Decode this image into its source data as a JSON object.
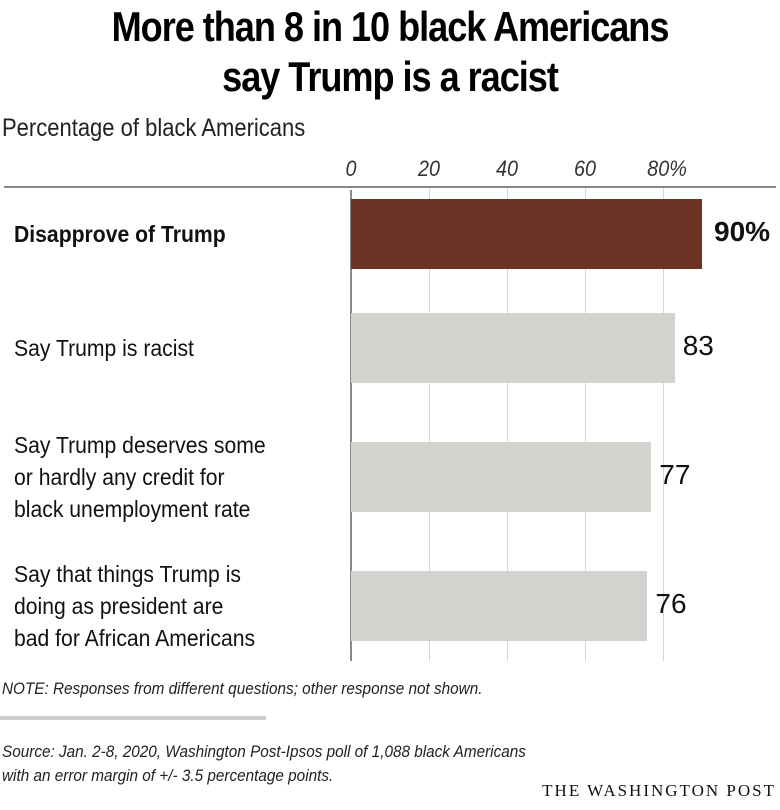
{
  "chart_data": {
    "type": "bar",
    "orientation": "horizontal",
    "title": "More than 8 in 10 black Americans say Trump is a racist",
    "title_lines": [
      "More than 8 in 10 black Americans",
      "say Trump is a racist"
    ],
    "subtitle": "Percentage of black Americans",
    "categories": [
      [
        "Disapprove of Trump"
      ],
      [
        "Say Trump is racist"
      ],
      [
        "Say Trump deserves some",
        "or hardly any credit for",
        "black unemployment rate"
      ],
      [
        "Say that things Trump is",
        "doing as president are",
        "bad for African Americans"
      ]
    ],
    "values": [
      90,
      83,
      77,
      76
    ],
    "value_labels": [
      "90%",
      "83",
      "77",
      "76"
    ],
    "highlight_index": 0,
    "colors": {
      "highlight": "#6a3324",
      "default": "#d3d3cf"
    },
    "xlim": [
      0,
      90
    ],
    "ticks": [
      0,
      20,
      40,
      60,
      80
    ],
    "tick_labels": [
      "0",
      "20",
      "40",
      "60",
      "80%"
    ],
    "grid": true
  },
  "note": "NOTE: Responses from different questions; other response not shown.",
  "source_lines": [
    "Source: Jan. 2-8, 2020, Washington Post-Ipsos poll of 1,088 black Americans",
    "with an error margin of +/- 3.5 percentage points."
  ],
  "credit": "THE WASHINGTON POST"
}
